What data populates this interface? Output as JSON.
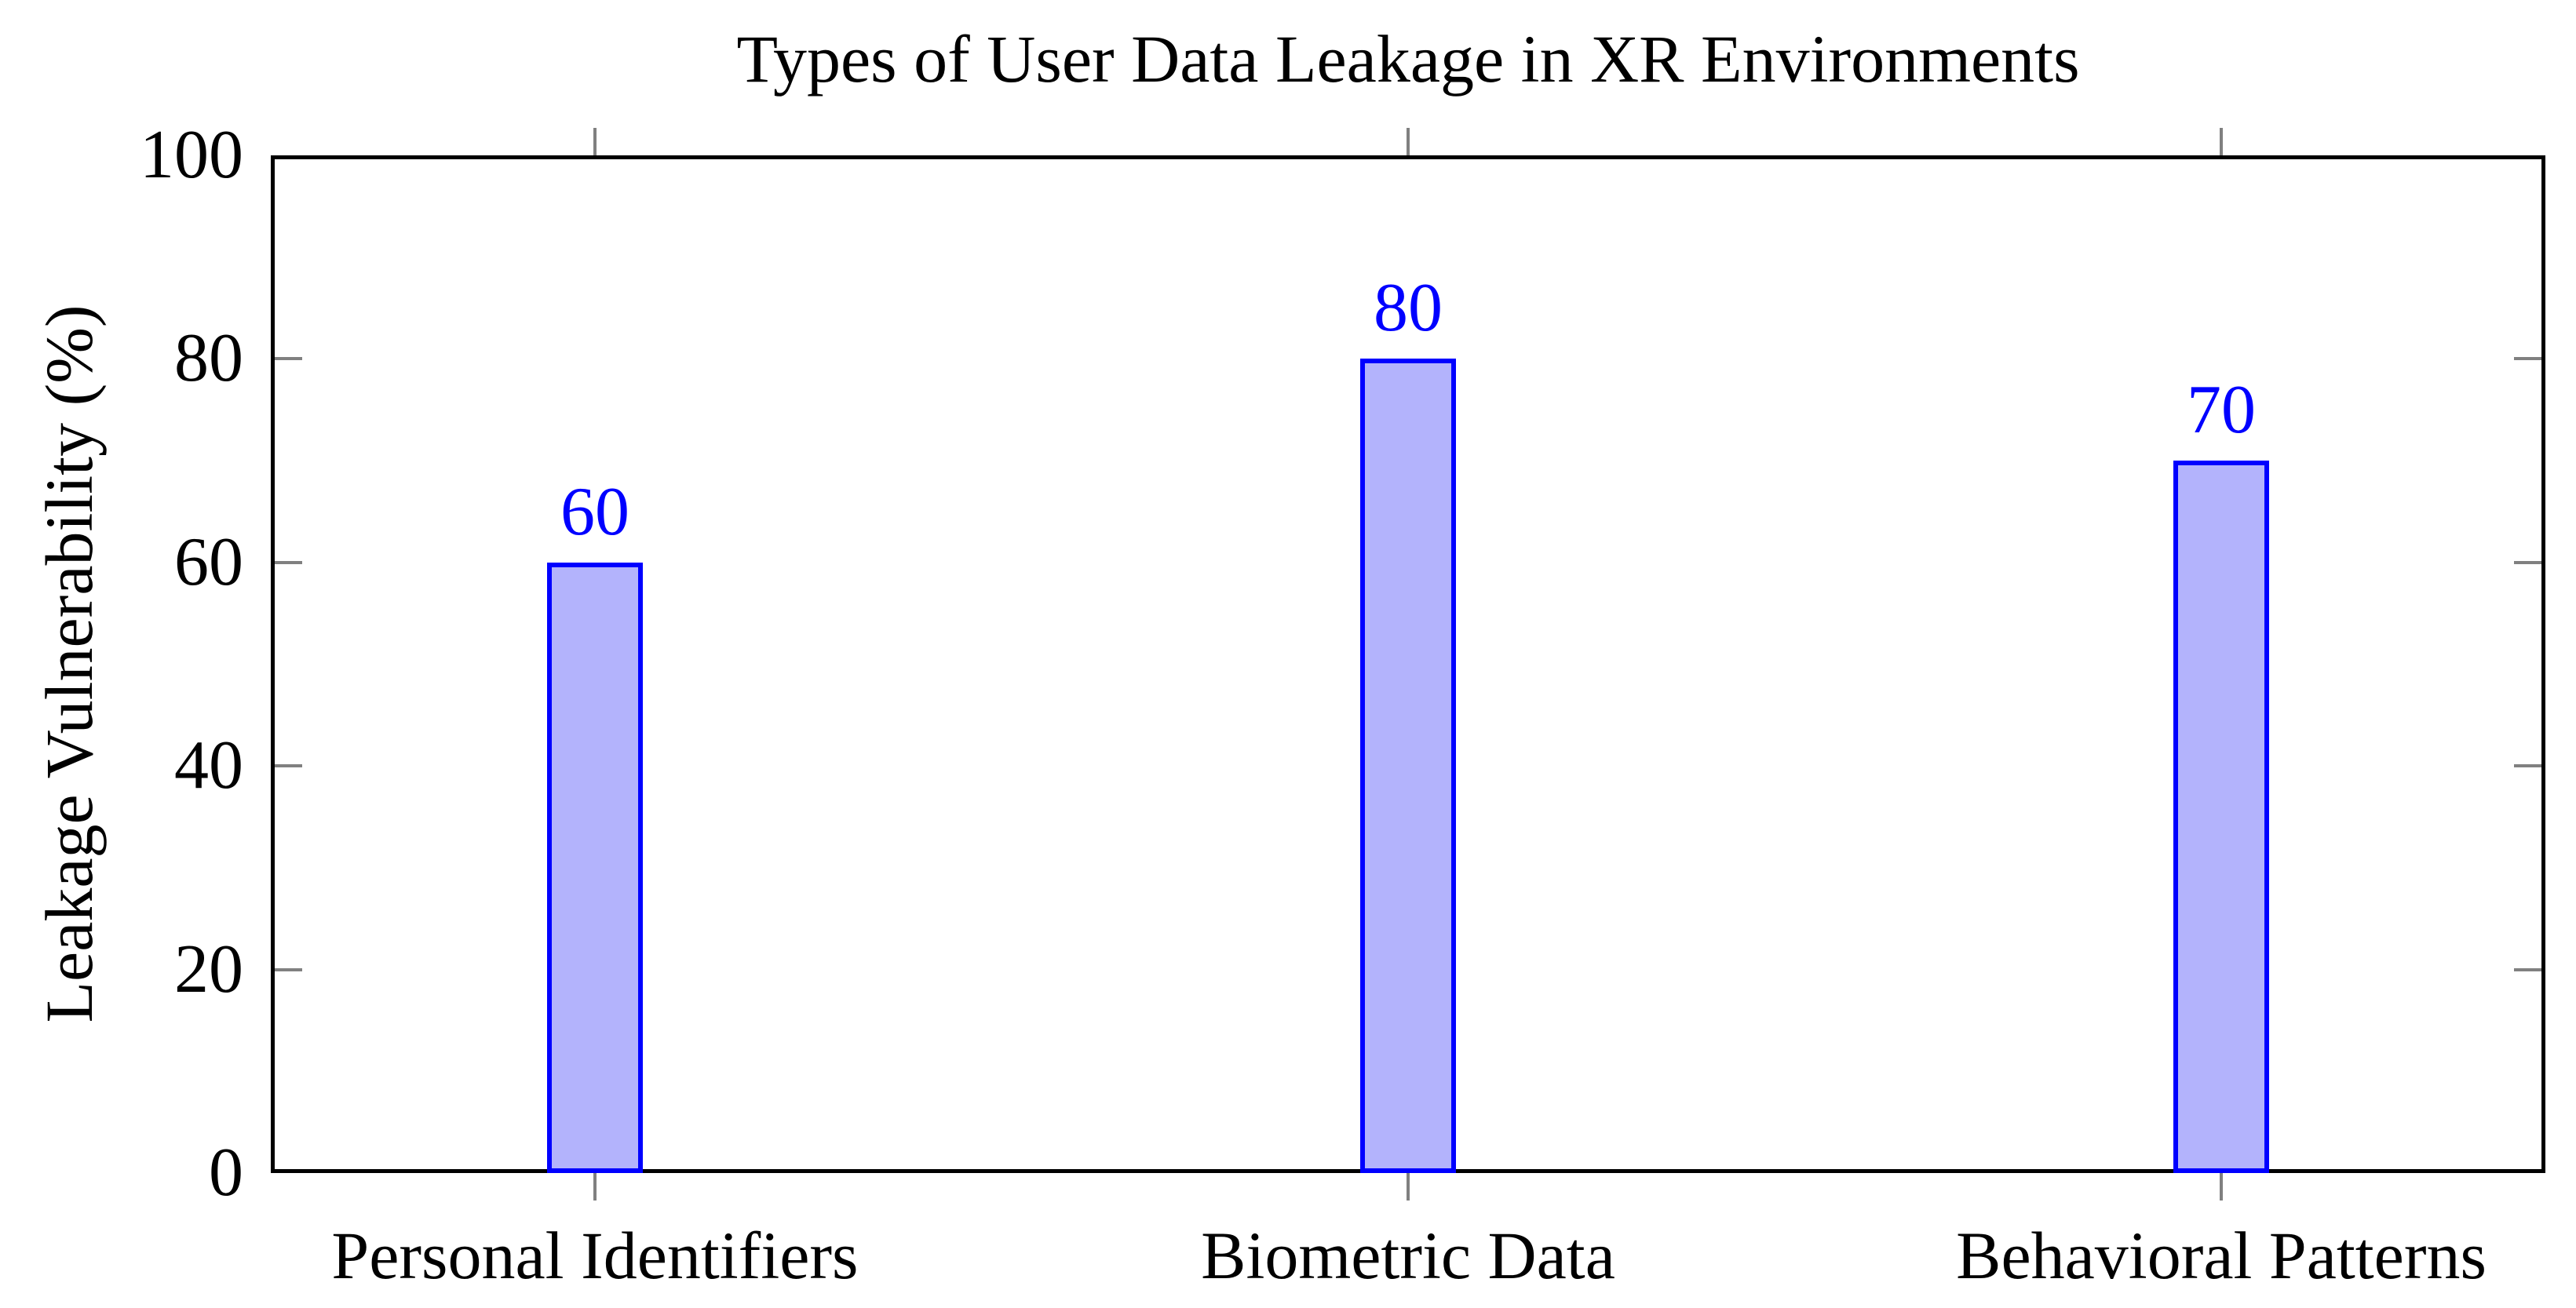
{
  "chart_data": {
    "type": "bar",
    "title": "Types of User Data Leakage in XR Environments",
    "xlabel": "",
    "ylabel": "Leakage Vulnerability (%)",
    "categories": [
      "Personal Identifiers",
      "Biometric Data",
      "Behavioral Patterns"
    ],
    "values": [
      60,
      80,
      70
    ],
    "bar_value_labels": [
      "60",
      "80",
      "70"
    ],
    "ylim": [
      0,
      100
    ],
    "y_ticks": [
      0,
      20,
      40,
      60,
      80,
      100
    ],
    "grid": false,
    "legend_position": "none",
    "layout_hints": {
      "bar_center_fractions": [
        0.1425,
        0.5,
        0.8575
      ],
      "frame": "full-box",
      "y_ticks_direction": "inward-both-sides",
      "x_ticks_direction": "outward-top-and-bottom"
    },
    "colors": {
      "bar_fill": "#B3B3FC",
      "bar_border": "#0000FF",
      "value_label": "#0000FF",
      "axis_frame": "#000000",
      "tick_mark": "#808080",
      "text": "#000000",
      "background": "#FFFFFF"
    }
  }
}
